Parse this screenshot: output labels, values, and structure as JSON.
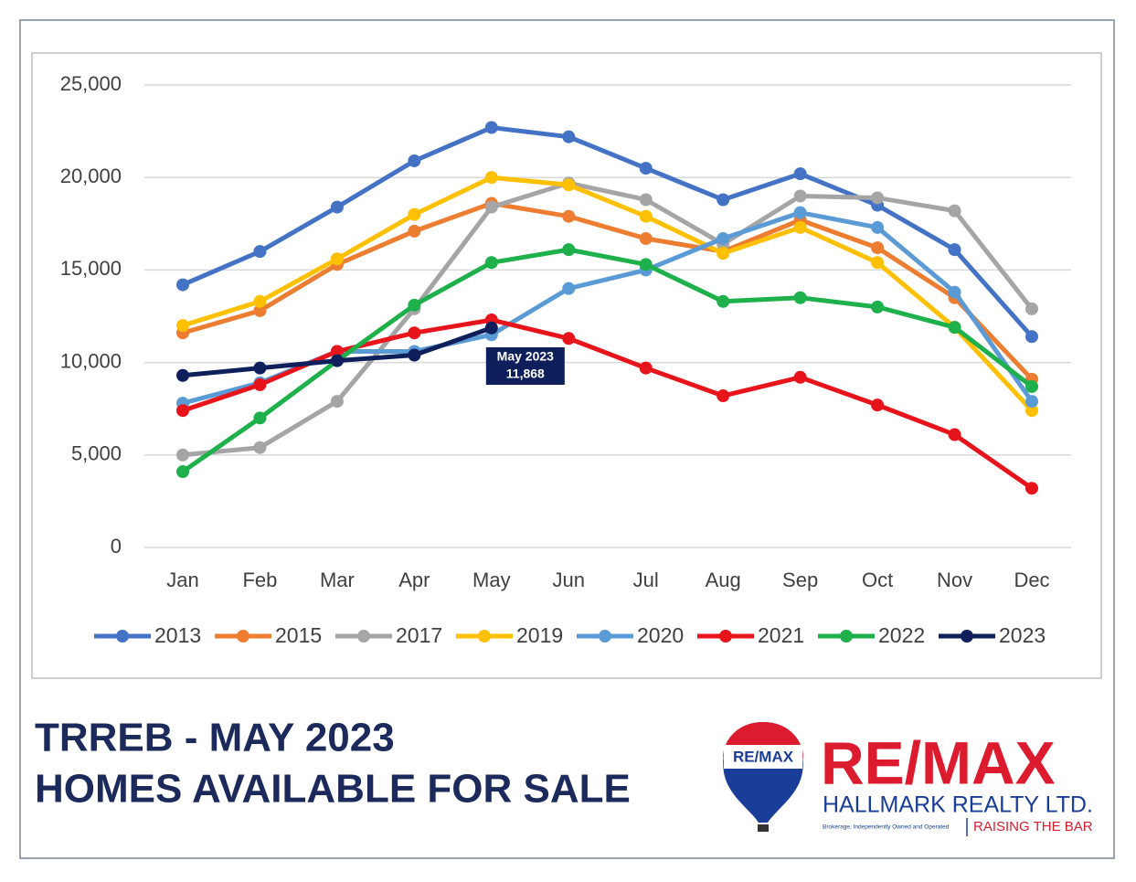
{
  "chart_data": {
    "type": "line",
    "categories": [
      "Jan",
      "Feb",
      "Mar",
      "Apr",
      "May",
      "Jun",
      "Jul",
      "Aug",
      "Sep",
      "Oct",
      "Nov",
      "Dec"
    ],
    "ylim": [
      0,
      25000
    ],
    "yticks": [
      0,
      {
        "value": 5000,
        "label": "5,000"
      },
      {
        "value": 10000,
        "label": "10,000"
      },
      {
        "value": 15000,
        "label": "15,000"
      },
      {
        "value": 20000,
        "label": "20,000"
      },
      {
        "value": 25000,
        "label": "25,000"
      }
    ],
    "grid": true,
    "legend": "bottom",
    "series": [
      {
        "name": "2013",
        "color": "#4472c4",
        "values": [
          14200,
          16000,
          18400,
          20900,
          22700,
          22200,
          20500,
          18800,
          20200,
          18500,
          16100,
          11400
        ]
      },
      {
        "name": "2015",
        "color": "#ed7d31",
        "values": [
          11600,
          12800,
          15300,
          17100,
          18600,
          17900,
          16700,
          16000,
          17700,
          16200,
          13500,
          9100
        ]
      },
      {
        "name": "2017",
        "color": "#a5a5a5",
        "values": [
          5000,
          5400,
          7900,
          12900,
          18400,
          19700,
          18800,
          16400,
          19000,
          18900,
          18200,
          12900
        ]
      },
      {
        "name": "2019",
        "color": "#ffc000",
        "values": [
          12000,
          13300,
          15600,
          18000,
          20000,
          19600,
          17900,
          15900,
          17300,
          15400,
          11900,
          7400
        ]
      },
      {
        "name": "2020",
        "color": "#5b9bd5",
        "values": [
          7800,
          8900,
          10600,
          10600,
          11500,
          14000,
          15000,
          16700,
          18100,
          17300,
          13800,
          7900
        ]
      },
      {
        "name": "2021",
        "color": "#e8141b",
        "values": [
          7400,
          8800,
          10600,
          11600,
          12300,
          11300,
          9700,
          8200,
          9200,
          7700,
          6100,
          3200
        ]
      },
      {
        "name": "2022",
        "color": "#1db04b",
        "values": [
          4100,
          7000,
          10100,
          13100,
          15400,
          16100,
          15300,
          13300,
          13500,
          13000,
          11900,
          8700
        ]
      },
      {
        "name": "2023",
        "color": "#0e1f5b",
        "values": [
          9300,
          9700,
          10100,
          10400,
          11868,
          null,
          null,
          null,
          null,
          null,
          null,
          null
        ],
        "value_labels": [
          null,
          null,
          null,
          null,
          "11,868",
          null,
          null,
          null,
          null,
          null,
          null,
          null
        ]
      }
    ],
    "annotation": "May 2023"
  },
  "footer": {
    "title_line1": "TRREB - MAY 2023",
    "title_line2": "HOMES AVAILABLE FOR SALE"
  },
  "logo": {
    "balloon_text": "RE/MAX",
    "brand": "RE/MAX",
    "office": "HALLMARK REALTY LTD.",
    "note": "Brokerage, Independently Owned and Operated",
    "slogan": "RAISING THE BAR"
  }
}
